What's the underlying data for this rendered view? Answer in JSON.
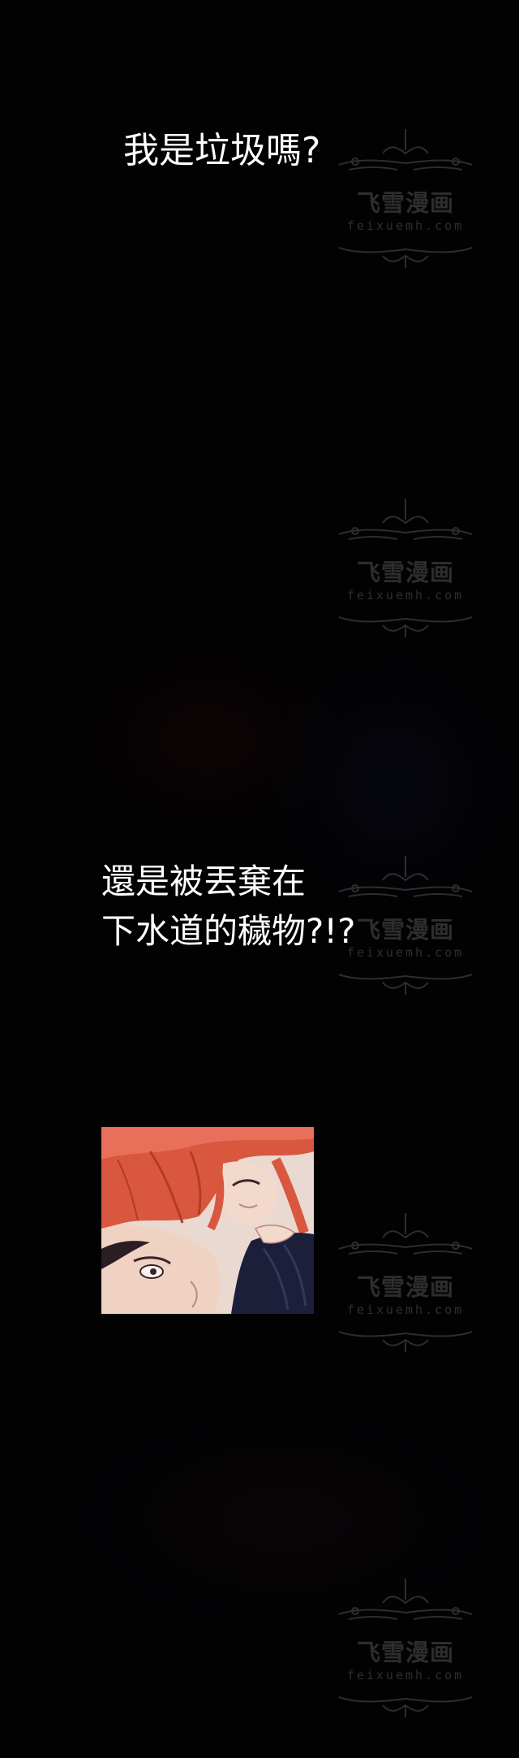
{
  "captions": {
    "first": "我是垃圾嗎?",
    "second_line1": "還是被丟棄在",
    "second_line2": "下水道的穢物?!?"
  },
  "watermark": {
    "title": "飞雪漫画",
    "url": "feixuemh.com"
  },
  "colors": {
    "background": "#020203",
    "caption_text": "#ffffff",
    "hair": "#d9573f",
    "skin": "#efd4c6",
    "dark_hair": "#1c1f3a"
  }
}
